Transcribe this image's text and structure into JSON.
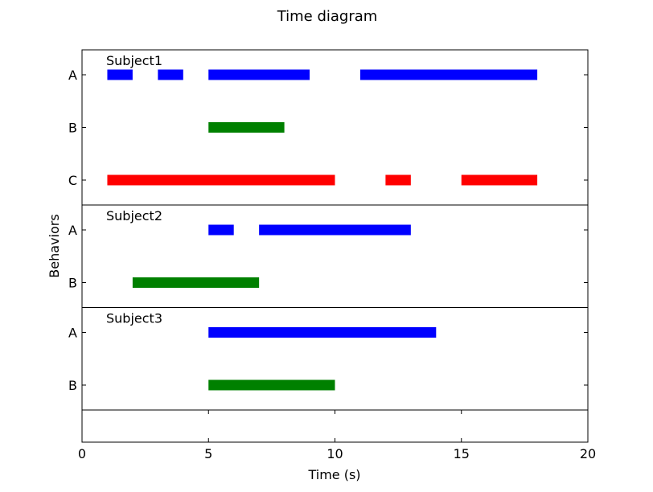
{
  "chart_data": {
    "type": "timeline",
    "title": "Time diagram",
    "xlabel": "Time (s)",
    "ylabel": "Behaviors",
    "xlim": [
      0,
      20
    ],
    "xticks": [
      0,
      5,
      10,
      15,
      20
    ],
    "grid": false,
    "colors": {
      "A": "#0000ff",
      "B": "#008000",
      "C": "#ff0000"
    },
    "subjects": [
      {
        "name": "Subject1",
        "behaviors": [
          {
            "label": "A",
            "intervals": [
              [
                1,
                2
              ],
              [
                3,
                4
              ],
              [
                5,
                9
              ],
              [
                11,
                18
              ]
            ]
          },
          {
            "label": "B",
            "intervals": [
              [
                5,
                8
              ]
            ]
          },
          {
            "label": "C",
            "intervals": [
              [
                1,
                10
              ],
              [
                12,
                13
              ],
              [
                15,
                18
              ]
            ]
          }
        ]
      },
      {
        "name": "Subject2",
        "behaviors": [
          {
            "label": "A",
            "intervals": [
              [
                5,
                6
              ],
              [
                7,
                13
              ]
            ]
          },
          {
            "label": "B",
            "intervals": [
              [
                2,
                7
              ]
            ]
          }
        ]
      },
      {
        "name": "Subject3",
        "behaviors": [
          {
            "label": "A",
            "intervals": [
              [
                5,
                14
              ]
            ]
          },
          {
            "label": "B",
            "intervals": [
              [
                5,
                10
              ]
            ]
          }
        ]
      }
    ]
  }
}
